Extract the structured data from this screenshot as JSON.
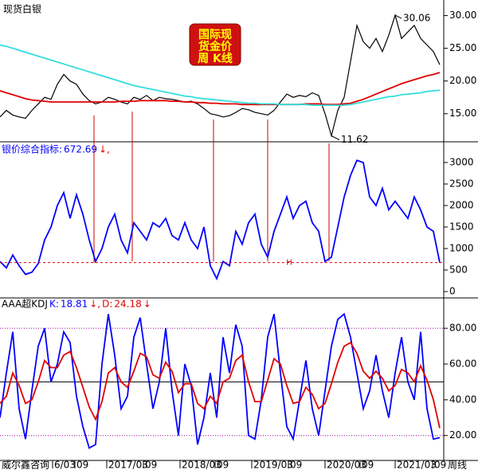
{
  "chart_data": [
    {
      "type": "line",
      "title": "现货白银",
      "xlim": [
        0,
        69.5
      ],
      "ylim": [
        10.95,
        32.14
      ],
      "yticks": [
        {
          "value": 15,
          "label": "15.00"
        },
        {
          "value": 20,
          "label": "20.00"
        },
        {
          "value": 25,
          "label": "25.00"
        },
        {
          "value": 30,
          "label": "30.00"
        }
      ],
      "badge": [
        "国际现",
        "货金价",
        "周 K线"
      ],
      "series": [
        {
          "color": "#000000",
          "values": [
            14.5,
            15.5,
            14.8,
            14.5,
            14.3,
            15.5,
            16.5,
            17.5,
            17.2,
            19.5,
            21,
            20,
            19.5,
            18,
            17,
            16.5,
            16.8,
            17.5,
            17.2,
            16.8,
            16.5,
            17.5,
            17.2,
            17.8,
            17,
            17.5,
            17.3,
            17.2,
            17,
            16.8,
            16.9,
            16.5,
            15.8,
            15,
            14.8,
            14.5,
            14.7,
            15.2,
            15.8,
            15.6,
            15.2,
            15,
            14.8,
            15.5,
            16.8,
            18,
            17.5,
            17.8,
            17.6,
            18.2,
            17.8,
            15,
            11.62,
            15.5,
            17.5,
            23,
            28.5,
            26,
            25,
            26.5,
            24.5,
            27,
            30.06,
            26.5,
            27.5,
            28.5,
            26.5,
            25.5,
            24.5,
            22.5
          ]
        },
        {
          "color": "#e00000",
          "values": [
            18.5,
            18.2,
            17.9,
            17.6,
            17.3,
            17.1,
            17.0,
            16.9,
            16.8,
            16.8,
            16.8,
            16.8,
            16.8,
            16.8,
            16.8,
            16.8,
            16.8,
            16.8,
            16.8,
            16.9,
            16.9,
            16.9,
            17.0,
            17.0,
            17.0,
            17.0,
            17.0,
            16.9,
            16.9,
            16.8,
            16.8,
            16.7,
            16.7,
            16.6,
            16.6,
            16.5,
            16.5,
            16.5,
            16.4,
            16.4,
            16.4,
            16.4,
            16.4,
            16.4,
            16.4,
            16.4,
            16.4,
            16.4,
            16.5,
            16.5,
            16.5,
            16.4,
            16.4,
            16.4,
            16.5,
            16.6,
            16.9,
            17.2,
            17.6,
            18.0,
            18.4,
            18.8,
            19.2,
            19.6,
            19.9,
            20.2,
            20.5,
            20.8,
            21.0,
            21.3
          ]
        },
        {
          "color": "#33dddd",
          "values": [
            25.5,
            25.3,
            25.0,
            24.7,
            24.4,
            24.1,
            23.8,
            23.5,
            23.2,
            22.9,
            22.6,
            22.3,
            22.0,
            21.7,
            21.4,
            21.1,
            20.8,
            20.5,
            20.2,
            19.9,
            19.6,
            19.3,
            19.1,
            18.9,
            18.7,
            18.5,
            18.3,
            18.1,
            17.9,
            17.7,
            17.6,
            17.4,
            17.3,
            17.2,
            17.1,
            17.0,
            16.9,
            16.8,
            16.7,
            16.6,
            16.6,
            16.5,
            16.5,
            16.5,
            16.4,
            16.4,
            16.4,
            16.4,
            16.4,
            16.3,
            16.3,
            16.3,
            16.3,
            16.3,
            16.3,
            16.4,
            16.6,
            16.8,
            17.0,
            17.2,
            17.4,
            17.6,
            17.7,
            17.9,
            18.0,
            18.1,
            18.2,
            18.4,
            18.5,
            18.6
          ]
        }
      ]
    },
    {
      "type": "line",
      "title": "银价综合指标:",
      "xlim": [
        0,
        69.5
      ],
      "ylim": [
        -111,
        3444
      ],
      "yticks": [
        0,
        500,
        1000,
        1500,
        2000,
        2500,
        3000
      ],
      "ref_marker": "H",
      "series": [
        {
          "color": "#0000ff",
          "trend": "↓,",
          "values": [
            700,
            550,
            850,
            600,
            400,
            450,
            650,
            1200,
            1500,
            2000,
            2300,
            1700,
            2250,
            1800,
            1200,
            700,
            1000,
            1500,
            1800,
            1200,
            900,
            1600,
            1400,
            1200,
            1600,
            1500,
            1700,
            1300,
            1200,
            1600,
            1200,
            1000,
            1500,
            600,
            300,
            700,
            600,
            1400,
            1100,
            1600,
            1800,
            1100,
            800,
            1400,
            1800,
            2200,
            1700,
            2000,
            2100,
            1600,
            1400,
            700,
            800,
            1500,
            2200,
            2700,
            3050,
            3000,
            2200,
            2000,
            2400,
            1900,
            2100,
            1900,
            1700,
            2200,
            1900,
            1500,
            1400,
            672.69
          ]
        }
      ]
    },
    {
      "type": "line",
      "title": "AAA超KDJ",
      "xlim": [
        0,
        69.5
      ],
      "ylim": [
        6.96,
        96.1
      ],
      "yticks": [
        {
          "value": 20,
          "label": "20.00"
        },
        {
          "value": 40,
          "label": "40.00"
        },
        {
          "value": 60,
          "label": "60.00"
        },
        {
          "value": 80,
          "label": "80.00"
        }
      ],
      "ref_lines": [
        80,
        50,
        20
      ],
      "xticks": [
        {
          "value": 8.5,
          "label": "6/03"
        },
        {
          "value": 12,
          "label": "09"
        },
        {
          "value": 17,
          "label": "2017/03"
        },
        {
          "value": 22.75,
          "label": "09"
        },
        {
          "value": 28.5,
          "label": "2018/03"
        },
        {
          "value": 34,
          "label": "09"
        },
        {
          "value": 39.75,
          "label": "2019/03"
        },
        {
          "value": 45.5,
          "label": "09"
        },
        {
          "value": 51.25,
          "label": "2020/03"
        },
        {
          "value": 56.75,
          "label": "09"
        },
        {
          "value": 62.25,
          "label": "2021/03"
        },
        {
          "value": 68.125,
          "label": "09"
        }
      ],
      "source": "威尔鑫咨询",
      "period": "周线",
      "series": [
        {
          "name": "K:",
          "color": "#0000ff",
          "trend": "↓,",
          "values": [
            30,
            55,
            78,
            35,
            18,
            45,
            70,
            80,
            50,
            60,
            78,
            72,
            42,
            25,
            13,
            15,
            60,
            88,
            65,
            35,
            42,
            75,
            86,
            60,
            35,
            50,
            80,
            45,
            20,
            60,
            48,
            15,
            30,
            55,
            30,
            75,
            55,
            82,
            70,
            20,
            18,
            40,
            75,
            88,
            55,
            25,
            18,
            40,
            62,
            35,
            20,
            45,
            70,
            85,
            88,
            75,
            55,
            35,
            45,
            65,
            45,
            30,
            55,
            75,
            50,
            40,
            78,
            35,
            18,
            18.81
          ]
        },
        {
          "name": "D:",
          "color": "#e00000",
          "trend": "↓",
          "values": [
            38,
            42,
            55,
            48,
            38,
            40,
            50,
            62,
            58,
            58,
            65,
            67,
            58,
            47,
            36,
            29,
            39,
            55,
            58,
            50,
            47,
            56,
            66,
            64,
            54,
            52,
            61,
            56,
            44,
            49,
            49,
            38,
            35,
            42,
            38,
            50,
            52,
            62,
            65,
            50,
            39,
            39,
            51,
            63,
            60,
            48,
            38,
            39,
            47,
            43,
            35,
            38,
            49,
            61,
            70,
            72,
            66,
            56,
            52,
            56,
            52,
            45,
            48,
            57,
            55,
            50,
            59,
            51,
            40,
            24.18
          ]
        }
      ]
    }
  ]
}
